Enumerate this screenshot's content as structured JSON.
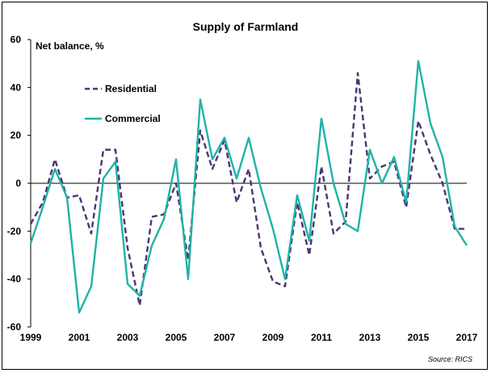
{
  "chart_data": {
    "type": "line",
    "title": "Supply of Farmland",
    "ylabel": "Net balance, %",
    "source": "Source: RICS",
    "ylim": [
      -60,
      60
    ],
    "yticks": [
      -60,
      -40,
      -20,
      0,
      20,
      40,
      60
    ],
    "xlim": [
      1999,
      2017
    ],
    "xticks": [
      1999,
      2001,
      2003,
      2005,
      2007,
      2009,
      2011,
      2013,
      2015,
      2017
    ],
    "grid": false,
    "legend_position": "upper-left",
    "series": [
      {
        "name": "Residential",
        "color": "#4b3572",
        "style": "dashed",
        "x": [
          1999,
          1999.5,
          2000,
          2000.5,
          2001,
          2001.5,
          2002,
          2002.5,
          2003,
          2003.5,
          2004,
          2004.5,
          2005,
          2005.5,
          2006,
          2006.5,
          2007,
          2007.5,
          2008,
          2008.5,
          2009,
          2009.5,
          2010,
          2010.5,
          2011,
          2011.5,
          2012,
          2012.5,
          2013,
          2013.5,
          2014,
          2014.5,
          2015,
          2015.5,
          2016,
          2016.5,
          2017
        ],
        "values": [
          -17,
          -8,
          10,
          -6,
          -5,
          -21,
          14,
          14,
          -27,
          -51,
          -14,
          -13,
          0,
          -32,
          22,
          6,
          18,
          -8,
          6,
          -27,
          -41,
          -43,
          -8,
          -30,
          7,
          -21,
          -16,
          46,
          2,
          7,
          9,
          -10,
          26,
          12,
          0,
          -19,
          -19
        ]
      },
      {
        "name": "Commercial",
        "color": "#1fb3a6",
        "style": "solid",
        "x": [
          1999,
          1999.5,
          2000,
          2000.5,
          2001,
          2001.5,
          2002,
          2002.5,
          2003,
          2003.5,
          2004,
          2004.5,
          2005,
          2005.5,
          2006,
          2006.5,
          2007,
          2007.5,
          2008,
          2008.5,
          2009,
          2009.5,
          2010,
          2010.5,
          2011,
          2011.5,
          2012,
          2012.5,
          2013,
          2013.5,
          2014,
          2014.5,
          2015,
          2015.5,
          2016,
          2016.5,
          2017
        ],
        "values": [
          -25,
          -10,
          6,
          -6,
          -54,
          -43,
          2,
          9,
          -42,
          -47,
          -26,
          -15,
          10,
          -40,
          35,
          10,
          19,
          2,
          19,
          -2,
          -19,
          -40,
          -5,
          -24,
          27,
          0,
          -17,
          -20,
          14,
          0,
          11,
          -8,
          51,
          25,
          11,
          -18,
          -26
        ]
      }
    ]
  }
}
